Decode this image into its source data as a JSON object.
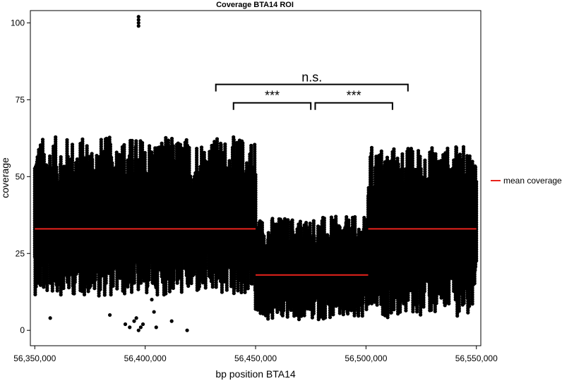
{
  "chart_data": {
    "type": "scatter",
    "title": "Coverage BTA14 ROI",
    "xlabel": "bp position BTA14",
    "ylabel": "coverage",
    "xlim": [
      56348000,
      56552000
    ],
    "ylim": [
      -5,
      104
    ],
    "x_ticks": [
      56350000,
      56400000,
      56450000,
      56500000,
      56550000
    ],
    "x_tick_labels": [
      "56,350,000",
      "56,400,000",
      "56,450,000",
      "56,500,000",
      "56,550,000"
    ],
    "y_ticks": [
      0,
      25,
      50,
      75,
      100
    ],
    "y_tick_labels": [
      "0",
      "25",
      "50",
      "75",
      "100"
    ],
    "grid": false,
    "legend": {
      "position": "right",
      "entries": [
        {
          "label": "mean coverage",
          "color": "#e8231c",
          "kind": "line"
        }
      ]
    },
    "point_color": "#000000",
    "segments": [
      {
        "x_start": 56350000,
        "x_end": 56450000,
        "mean": 33,
        "low": 11,
        "high": 63
      },
      {
        "x_start": 56450000,
        "x_end": 56501000,
        "mean": 18,
        "low": 3,
        "high": 37
      },
      {
        "x_start": 56501000,
        "x_end": 56550000,
        "mean": 33,
        "low": 4,
        "high": 60
      }
    ],
    "mean_coverage": [
      {
        "x_start": 56350000,
        "x_end": 56450000,
        "y": 33
      },
      {
        "x_start": 56450000,
        "x_end": 56501000,
        "y": 18
      },
      {
        "x_start": 56501000,
        "x_end": 56550000,
        "y": 33
      }
    ],
    "outliers": [
      {
        "x": 56397000,
        "y": 102
      },
      {
        "x": 56397000,
        "y": 101
      },
      {
        "x": 56397000,
        "y": 100
      },
      {
        "x": 56397000,
        "y": 99
      },
      {
        "x": 56357000,
        "y": 4
      },
      {
        "x": 56384000,
        "y": 5
      },
      {
        "x": 56391000,
        "y": 2
      },
      {
        "x": 56393000,
        "y": 1
      },
      {
        "x": 56395000,
        "y": 3
      },
      {
        "x": 56396000,
        "y": 4
      },
      {
        "x": 56397000,
        "y": 0
      },
      {
        "x": 56398000,
        "y": 1
      },
      {
        "x": 56399000,
        "y": 2
      },
      {
        "x": 56403000,
        "y": 10
      },
      {
        "x": 56404000,
        "y": 6
      },
      {
        "x": 56405000,
        "y": 1
      },
      {
        "x": 56412000,
        "y": 3
      },
      {
        "x": 56419000,
        "y": 0
      }
    ],
    "annotations": [
      {
        "text": "n.s.",
        "x_start": 56432000,
        "x_end": 56519000,
        "y": 80
      },
      {
        "text": "***",
        "x_start": 56440000,
        "x_end": 56475000,
        "y": 74
      },
      {
        "text": "***",
        "x_start": 56477000,
        "x_end": 56512000,
        "y": 74
      }
    ]
  }
}
